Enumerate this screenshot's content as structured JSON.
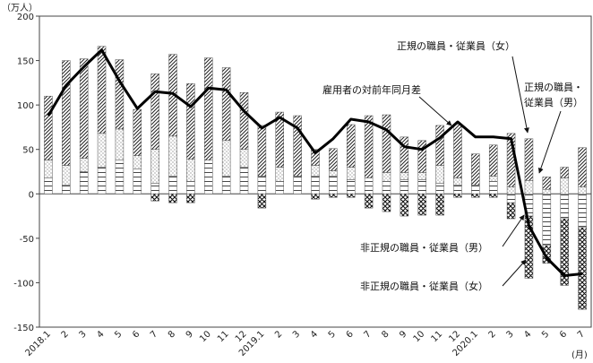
{
  "chart_data": {
    "type": "bar",
    "y_unit_label": "（万人）",
    "x_unit_label": "(月)",
    "ylim": [
      -150,
      200
    ],
    "y_ticks": [
      -150,
      -100,
      -50,
      0,
      50,
      100,
      150,
      200
    ],
    "grid": false,
    "categories": [
      "2018.1",
      "2",
      "3",
      "4",
      "5",
      "6",
      "7",
      "8",
      "9",
      "10",
      "11",
      "12",
      "2019.1",
      "2",
      "3",
      "4",
      "5",
      "6",
      "7",
      "8",
      "9",
      "10",
      "11",
      "12",
      "2020.1",
      "2",
      "3",
      "4",
      "5",
      "6",
      "7"
    ],
    "series": [
      {
        "name": "非正規の職員・従業員（男）",
        "values": [
          18,
          10,
          25,
          30,
          38,
          28,
          12,
          20,
          14,
          38,
          20,
          30,
          20,
          14,
          20,
          20,
          20,
          16,
          18,
          14,
          16,
          16,
          12,
          10,
          10,
          14,
          -10,
          -25,
          -58,
          -28,
          -38
        ]
      },
      {
        "name": "非正規の職員・従業員（女）",
        "values": [
          0,
          0,
          0,
          0,
          0,
          0,
          -8,
          -10,
          -10,
          0,
          0,
          0,
          -16,
          0,
          0,
          -6,
          -4,
          -4,
          -16,
          -20,
          -25,
          -24,
          -24,
          -4,
          -4,
          -4,
          -18,
          -70,
          -20,
          -75,
          -92
        ]
      },
      {
        "name": "正規の職員・従業員（男）",
        "values": [
          20,
          22,
          15,
          38,
          35,
          15,
          38,
          45,
          25,
          0,
          40,
          20,
          0,
          16,
          0,
          12,
          6,
          14,
          0,
          10,
          8,
          8,
          20,
          8,
          0,
          6,
          8,
          15,
          5,
          18,
          8
        ]
      },
      {
        "name": "正規の職員・従業員（女）",
        "values": [
          72,
          118,
          112,
          98,
          78,
          52,
          85,
          92,
          85,
          115,
          82,
          64,
          57,
          62,
          68,
          18,
          25,
          48,
          70,
          65,
          40,
          36,
          45,
          60,
          35,
          35,
          60,
          47,
          14,
          12,
          44
        ]
      }
    ],
    "line": {
      "name": "雇用者の対前年同月差",
      "values": [
        88,
        122,
        143,
        162,
        127,
        96,
        115,
        113,
        98,
        119,
        117,
        93,
        74,
        86,
        74,
        46,
        62,
        84,
        81,
        72,
        53,
        50,
        63,
        81,
        64,
        64,
        62,
        -36,
        -72,
        -92,
        -90
      ]
    },
    "annotations": [
      "正規の職員・従業員（女）",
      "雇用者の対前年同月差",
      "正規の職員・",
      "従業員（男）",
      "非正規の職員・従業員（男）",
      "非正規の職員・従業員（女）"
    ]
  }
}
